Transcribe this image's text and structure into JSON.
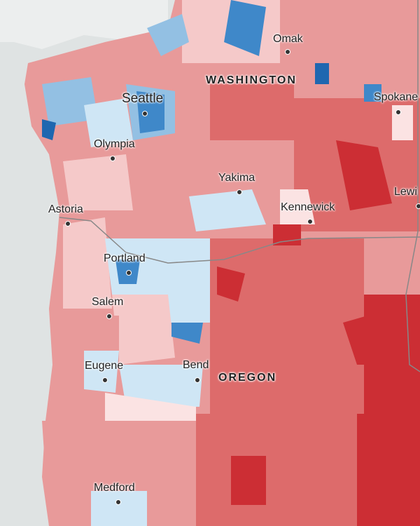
{
  "map": {
    "states": [
      "WASHINGTON",
      "OREGON"
    ],
    "cities": [
      "Omak",
      "Seattle",
      "Spokane",
      "Olympia",
      "Yakima",
      "Lewi",
      "Astoria",
      "Kennewick",
      "Portland",
      "Salem",
      "Eugene",
      "Bend",
      "Medford"
    ],
    "colors": {
      "water": "#dfe3e3",
      "land_outside": "#eceeee",
      "dark_red": "#cc2e34",
      "red": "#dd6b6b",
      "mid_red": "#e89a9a",
      "light_red": "#f5c9c9",
      "pale_red": "#fbe3e3",
      "pale_blue": "#cfe6f5",
      "light_blue": "#93c0e3",
      "blue": "#3f88c9",
      "dark_blue": "#1f67b0"
    }
  }
}
